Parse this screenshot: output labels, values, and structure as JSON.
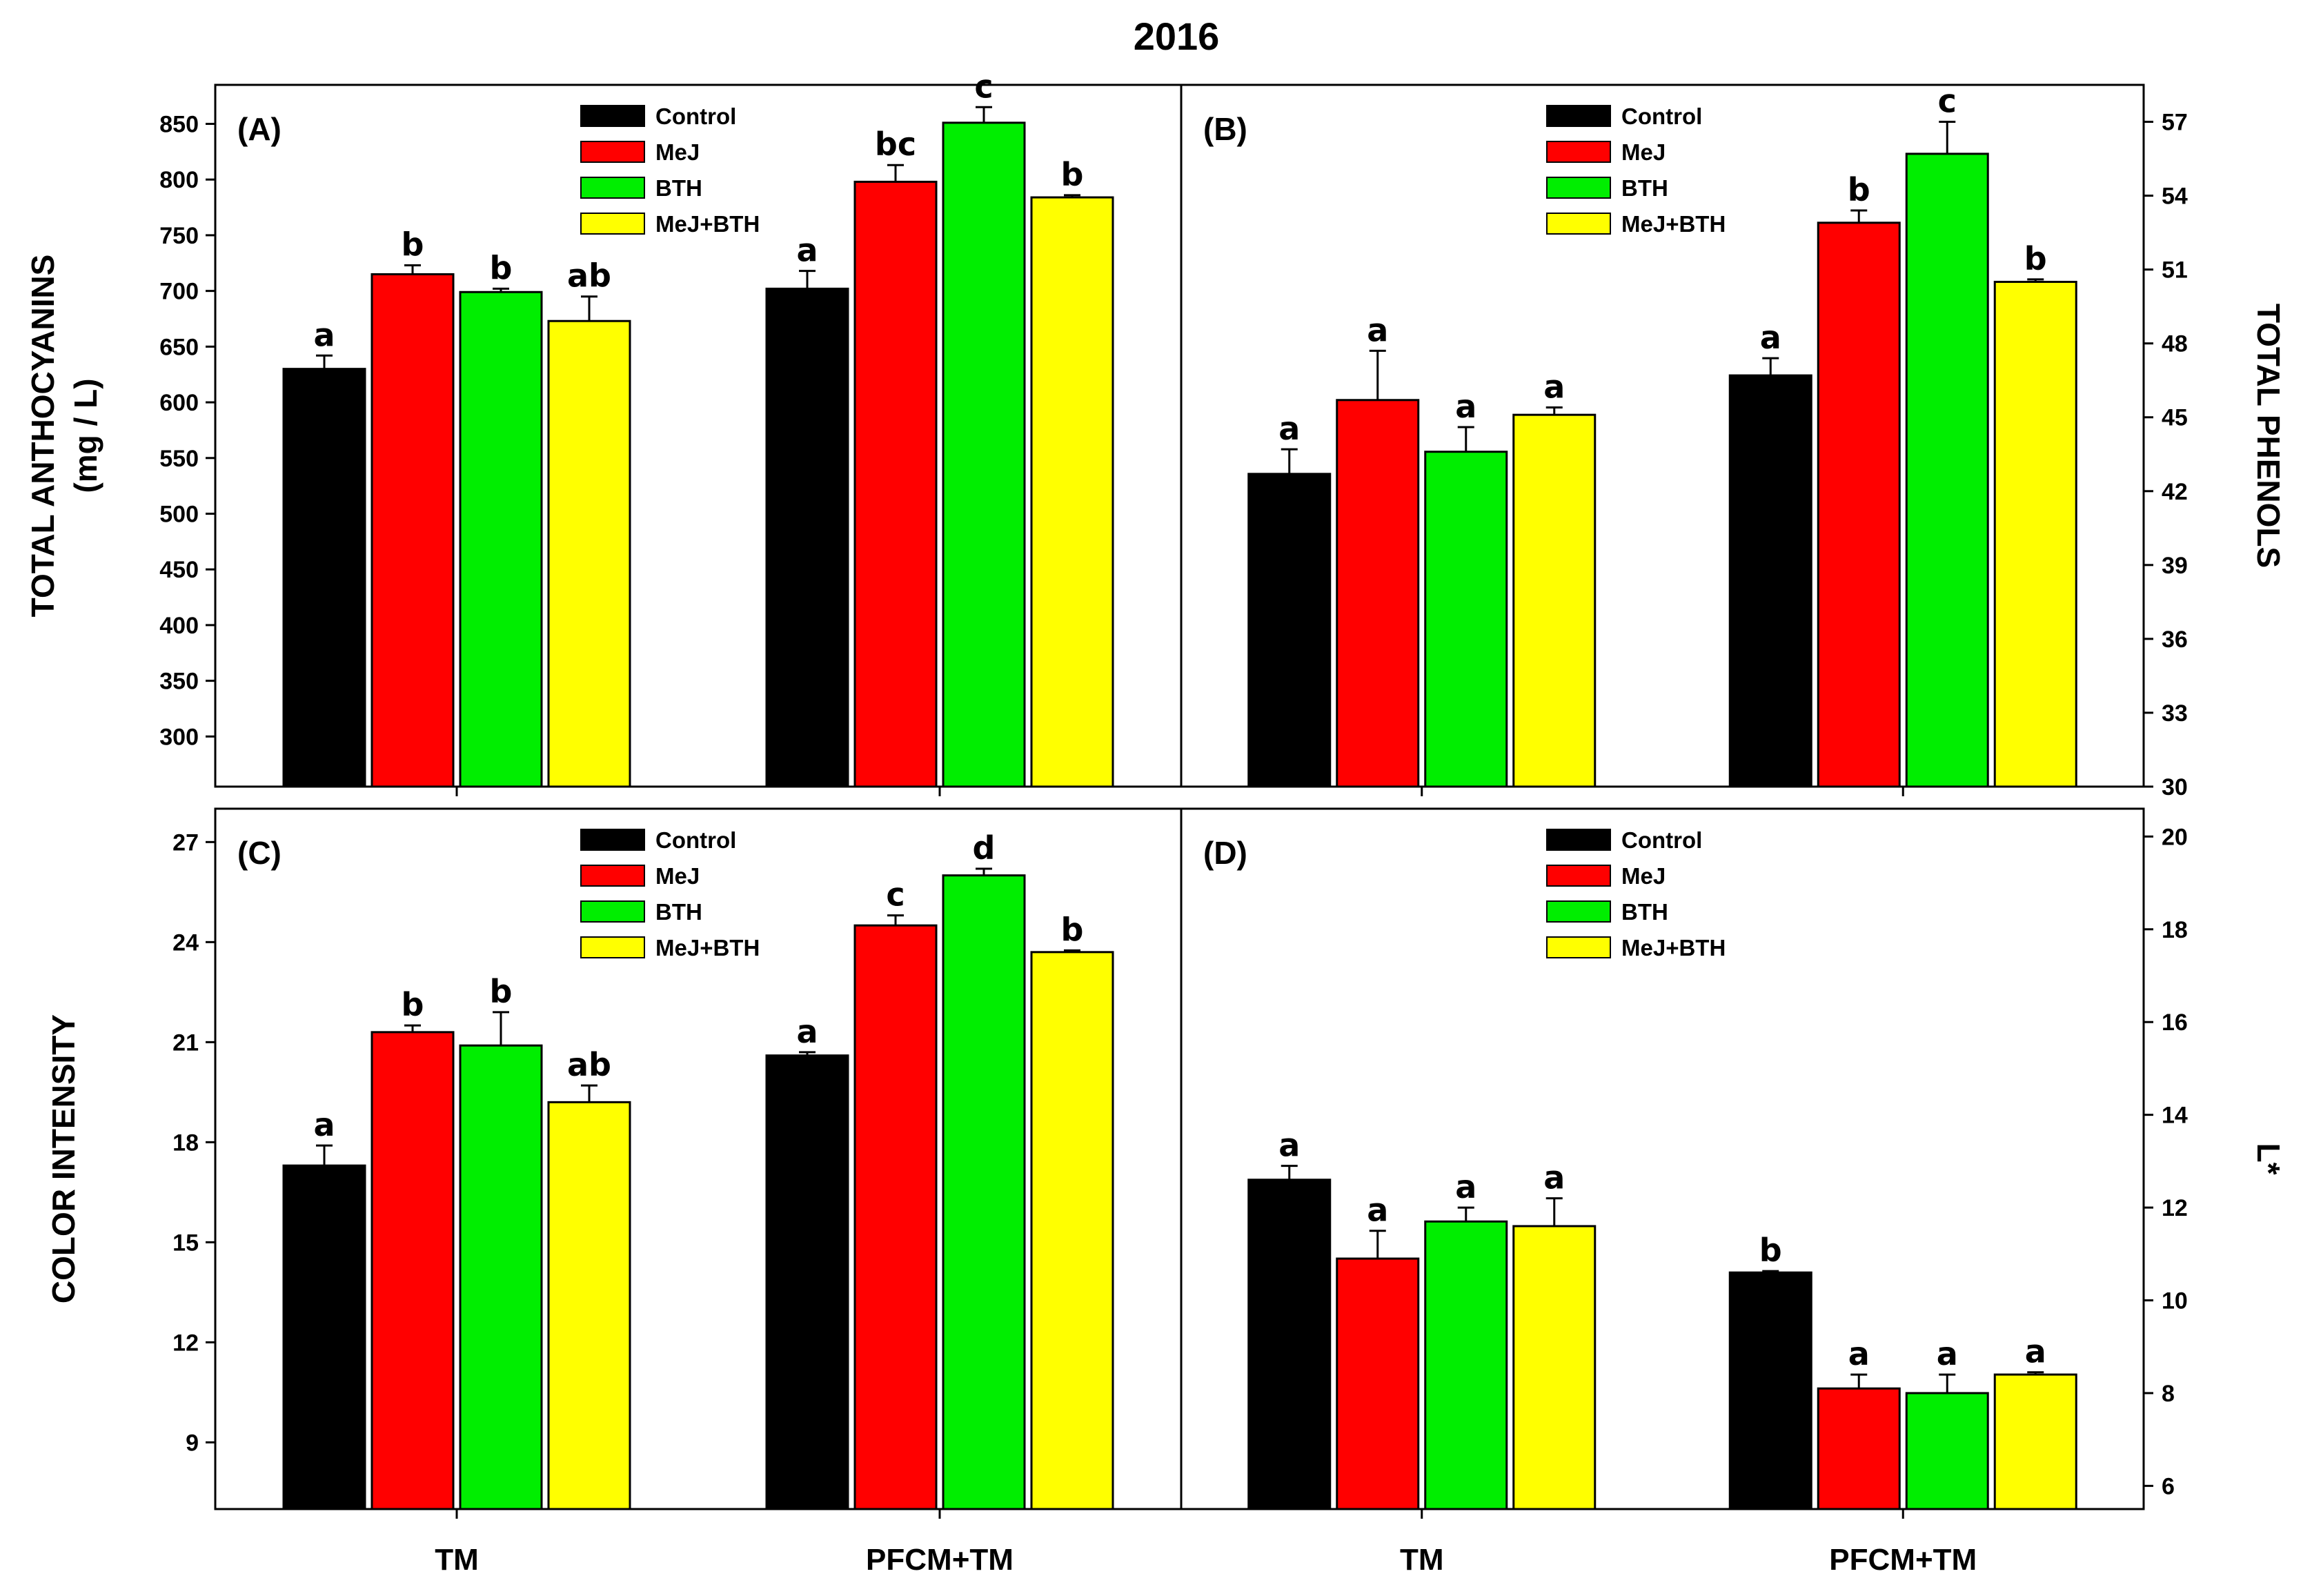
{
  "title": "2016",
  "chart_data": [
    {
      "type": "bar",
      "panel": "(A)",
      "ylabel": "TOTAL ANTHOCYANINS",
      "ylabel2": "(mg / L)",
      "axis_side": "left",
      "categories": [
        "TM",
        "PFCM+TM"
      ],
      "ylim": [
        255,
        885
      ],
      "yticks": [
        300,
        350,
        400,
        450,
        500,
        550,
        600,
        650,
        700,
        750,
        800,
        850
      ],
      "legend_position": "top-center",
      "series": [
        {
          "name": "Control",
          "color": "#000000",
          "values": [
            630,
            702
          ],
          "errors": [
            12,
            16
          ],
          "letters": [
            "a",
            "a"
          ]
        },
        {
          "name": "MeJ",
          "color": "#ff0000",
          "values": [
            715,
            798
          ],
          "errors": [
            8,
            15
          ],
          "letters": [
            "b",
            "bc"
          ]
        },
        {
          "name": "BTH",
          "color": "#00ee00",
          "values": [
            699,
            851
          ],
          "errors": [
            3,
            14
          ],
          "letters": [
            "b",
            "c"
          ]
        },
        {
          "name": "MeJ+BTH",
          "color": "#ffff00",
          "values": [
            673,
            784
          ],
          "errors": [
            22,
            2
          ],
          "letters": [
            "ab",
            "b"
          ]
        }
      ]
    },
    {
      "type": "bar",
      "panel": "(B)",
      "ylabel": "TOTAL PHENOLS",
      "axis_side": "right",
      "categories": [
        "TM",
        "PFCM+TM"
      ],
      "ylim": [
        30,
        58.5
      ],
      "yticks": [
        30,
        33,
        36,
        39,
        42,
        45,
        48,
        51,
        54,
        57
      ],
      "legend_position": "top-center",
      "series": [
        {
          "name": "Control",
          "color": "#000000",
          "values": [
            42.7,
            46.7
          ],
          "errors": [
            1.0,
            0.7
          ],
          "letters": [
            "a",
            "a"
          ]
        },
        {
          "name": "MeJ",
          "color": "#ff0000",
          "values": [
            45.7,
            52.9
          ],
          "errors": [
            2.0,
            0.5
          ],
          "letters": [
            "a",
            "b"
          ]
        },
        {
          "name": "BTH",
          "color": "#00ee00",
          "values": [
            43.6,
            55.7
          ],
          "errors": [
            1.0,
            1.3
          ],
          "letters": [
            "a",
            "c"
          ]
        },
        {
          "name": "MeJ+BTH",
          "color": "#ffff00",
          "values": [
            45.1,
            50.5
          ],
          "errors": [
            0.3,
            0.1
          ],
          "letters": [
            "a",
            "b"
          ]
        }
      ]
    },
    {
      "type": "bar",
      "panel": "(C)",
      "ylabel": "COLOR INTENSITY",
      "axis_side": "left",
      "categories": [
        "TM",
        "PFCM+TM"
      ],
      "xlabel_ticks": [
        "TM",
        "PFCM+TM"
      ],
      "ylim": [
        7,
        28
      ],
      "yticks": [
        9,
        12,
        15,
        18,
        21,
        24,
        27
      ],
      "legend_position": "top-center",
      "series": [
        {
          "name": "Control",
          "color": "#000000",
          "values": [
            17.3,
            20.6
          ],
          "errors": [
            0.6,
            0.1
          ],
          "letters": [
            "a",
            "a"
          ]
        },
        {
          "name": "MeJ",
          "color": "#ff0000",
          "values": [
            21.3,
            24.5
          ],
          "errors": [
            0.2,
            0.3
          ],
          "letters": [
            "b",
            "c"
          ]
        },
        {
          "name": "BTH",
          "color": "#00ee00",
          "values": [
            20.9,
            26.0
          ],
          "errors": [
            1.0,
            0.2
          ],
          "letters": [
            "b",
            "d"
          ]
        },
        {
          "name": "MeJ+BTH",
          "color": "#ffff00",
          "values": [
            19.2,
            23.7
          ],
          "errors": [
            0.5,
            0.05
          ],
          "letters": [
            "ab",
            "b"
          ]
        }
      ]
    },
    {
      "type": "bar",
      "panel": "(D)",
      "ylabel": "L*",
      "axis_side": "right",
      "categories": [
        "TM",
        "PFCM+TM"
      ],
      "xlabel_ticks": [
        "TM",
        "PFCM+TM"
      ],
      "ylim": [
        5.5,
        20.6
      ],
      "yticks": [
        6,
        8,
        10,
        12,
        14,
        16,
        18,
        20
      ],
      "legend_position": "top-center",
      "series": [
        {
          "name": "Control",
          "color": "#000000",
          "values": [
            12.6,
            10.6
          ],
          "errors": [
            0.3,
            0.03
          ],
          "letters": [
            "a",
            "b"
          ]
        },
        {
          "name": "MeJ",
          "color": "#ff0000",
          "values": [
            10.9,
            8.1
          ],
          "errors": [
            0.6,
            0.3
          ],
          "letters": [
            "a",
            "a"
          ]
        },
        {
          "name": "BTH",
          "color": "#00ee00",
          "values": [
            11.7,
            8.0
          ],
          "errors": [
            0.3,
            0.4
          ],
          "letters": [
            "a",
            "a"
          ]
        },
        {
          "name": "MeJ+BTH",
          "color": "#ffff00",
          "values": [
            11.6,
            8.4
          ],
          "errors": [
            0.6,
            0.05
          ],
          "letters": [
            "a",
            "a"
          ]
        }
      ]
    }
  ]
}
